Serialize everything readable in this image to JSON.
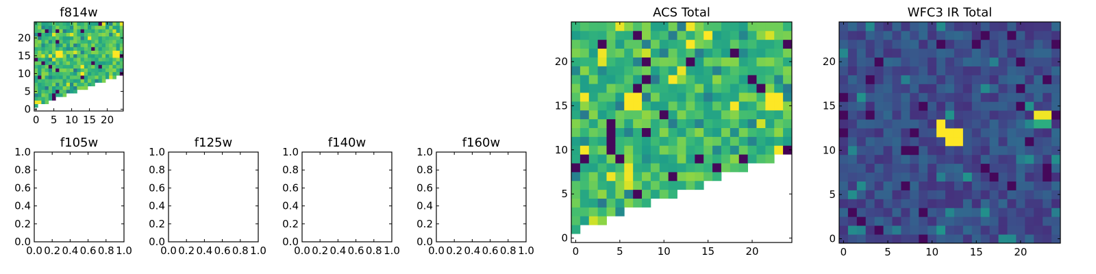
{
  "chart_data": [
    {
      "type": "heatmap",
      "title": "f814w",
      "xticks": [
        "0",
        "5",
        "10",
        "15",
        "20"
      ],
      "yticks": [
        "0",
        "5",
        "10",
        "15",
        "20"
      ],
      "xlim": [
        -0.5,
        24.5
      ],
      "ylim": [
        -0.5,
        24.5
      ],
      "colormap": "viridis",
      "masked_region": "lower-right triangle",
      "cell_values": "approximate; generated in script from the visible pattern"
    },
    {
      "type": "scatter",
      "title": "f105w",
      "xticks": [
        "0.0",
        "0.2",
        "0.4",
        "0.6",
        "0.8",
        "1.0"
      ],
      "yticks": [
        "0.0",
        "0.2",
        "0.4",
        "0.6",
        "0.8",
        "1.0"
      ],
      "xlim": [
        0,
        1
      ],
      "ylim": [
        0,
        1
      ],
      "empty": true
    },
    {
      "type": "scatter",
      "title": "f125w",
      "xticks": [
        "0.0",
        "0.2",
        "0.4",
        "0.6",
        "0.8",
        "1.0"
      ],
      "yticks": [
        "0.0",
        "0.2",
        "0.4",
        "0.6",
        "0.8",
        "1.0"
      ],
      "xlim": [
        0,
        1
      ],
      "ylim": [
        0,
        1
      ],
      "empty": true
    },
    {
      "type": "scatter",
      "title": "f140w",
      "xticks": [
        "0.0",
        "0.2",
        "0.4",
        "0.6",
        "0.8",
        "1.0"
      ],
      "yticks": [
        "0.0",
        "0.2",
        "0.4",
        "0.6",
        "0.8",
        "1.0"
      ],
      "xlim": [
        0,
        1
      ],
      "ylim": [
        0,
        1
      ],
      "empty": true
    },
    {
      "type": "scatter",
      "title": "f160w",
      "xticks": [
        "0.0",
        "0.2",
        "0.4",
        "0.6",
        "0.8",
        "1.0"
      ],
      "yticks": [
        "0.0",
        "0.2",
        "0.4",
        "0.6",
        "0.8",
        "1.0"
      ],
      "xlim": [
        0,
        1
      ],
      "ylim": [
        0,
        1
      ],
      "empty": true
    },
    {
      "type": "heatmap",
      "title": "ACS Total",
      "xticks": [
        "0",
        "5",
        "10",
        "15",
        "20"
      ],
      "yticks": [
        "0",
        "5",
        "10",
        "15",
        "20"
      ],
      "xlim": [
        -0.5,
        24.5
      ],
      "ylim": [
        -0.5,
        24.5
      ],
      "colormap": "viridis",
      "masked_region": "lower-right triangle",
      "cell_values": "approximate; generated in script from the visible pattern"
    },
    {
      "type": "heatmap",
      "title": "WFC3 IR Total",
      "xticks": [
        "0",
        "5",
        "10",
        "15",
        "20"
      ],
      "yticks": [
        "0",
        "5",
        "10",
        "15",
        "20"
      ],
      "xlim": [
        -0.5,
        24.5
      ],
      "ylim": [
        -0.5,
        24.5
      ],
      "colormap": "viridis",
      "hot_cells": "bright source around x=11-13, y=11-13 and x=22-23, y=14",
      "cell_values": "approximate; generated in script from the visible pattern"
    }
  ]
}
